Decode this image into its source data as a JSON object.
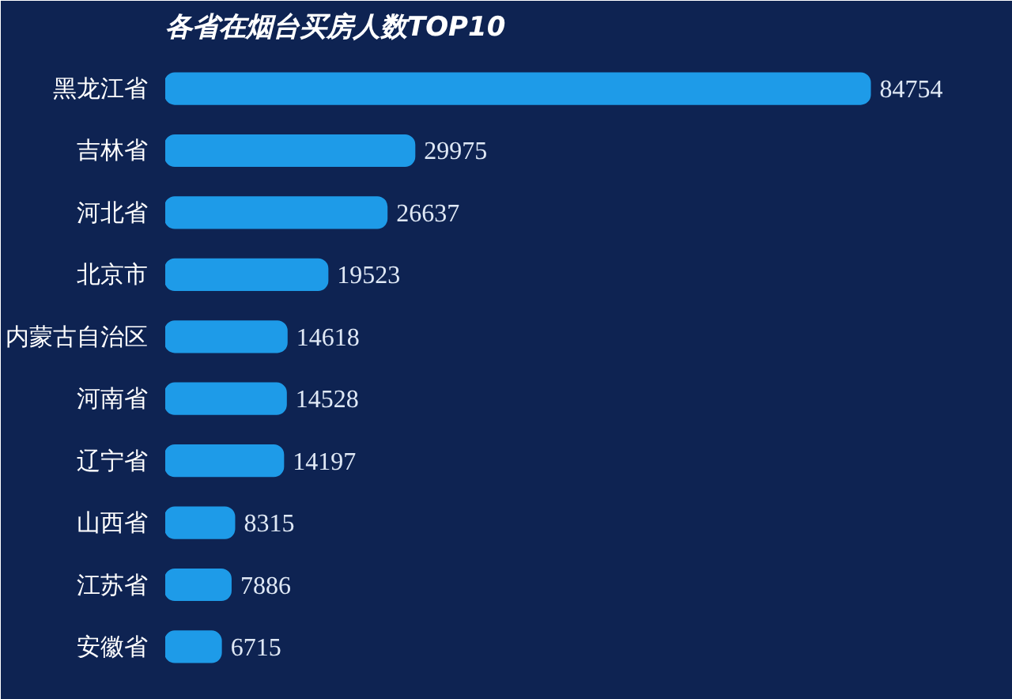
{
  "chart_data": {
    "type": "bar",
    "orientation": "horizontal",
    "title": "各省在烟台买房人数TOP10",
    "categories": [
      "黑龙江省",
      "吉林省",
      "河北省",
      "北京市",
      "内蒙古自治区",
      "河南省",
      "辽宁省",
      "山西省",
      "江苏省",
      "安徽省"
    ],
    "values": [
      84754,
      29975,
      26637,
      19523,
      14618,
      14528,
      14197,
      8315,
      7886,
      6715
    ],
    "color": "#1e9be8",
    "data_labels": true,
    "tick_labels": "y"
  }
}
